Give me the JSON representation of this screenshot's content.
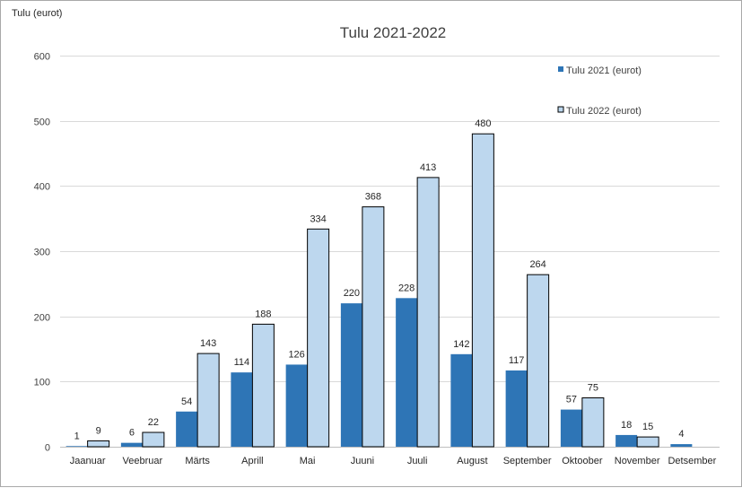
{
  "chart_data": {
    "type": "bar",
    "title": "Tulu 2021-2022",
    "ylabel": "Tulu (eurot)",
    "xlabel": "",
    "ylim": [
      0,
      600
    ],
    "yticks": [
      0,
      100,
      200,
      300,
      400,
      500,
      600
    ],
    "grid": true,
    "legend_position": "top-right",
    "categories": [
      "Jaanuar",
      "Veebruar",
      "Märts",
      "Aprill",
      "Mai",
      "Juuni",
      "Juuli",
      "August",
      "September",
      "Oktoober",
      "November",
      "Detsember"
    ],
    "series": [
      {
        "name": "Tulu 2021 (eurot)",
        "color": "#2e75b6",
        "values": [
          1,
          6,
          54,
          114,
          126,
          220,
          228,
          142,
          117,
          57,
          18,
          4
        ]
      },
      {
        "name": "Tulu 2022 (eurot)",
        "color": "#bdd7ee",
        "values": [
          9,
          22,
          143,
          188,
          334,
          368,
          413,
          480,
          264,
          75,
          15,
          null
        ]
      }
    ]
  }
}
